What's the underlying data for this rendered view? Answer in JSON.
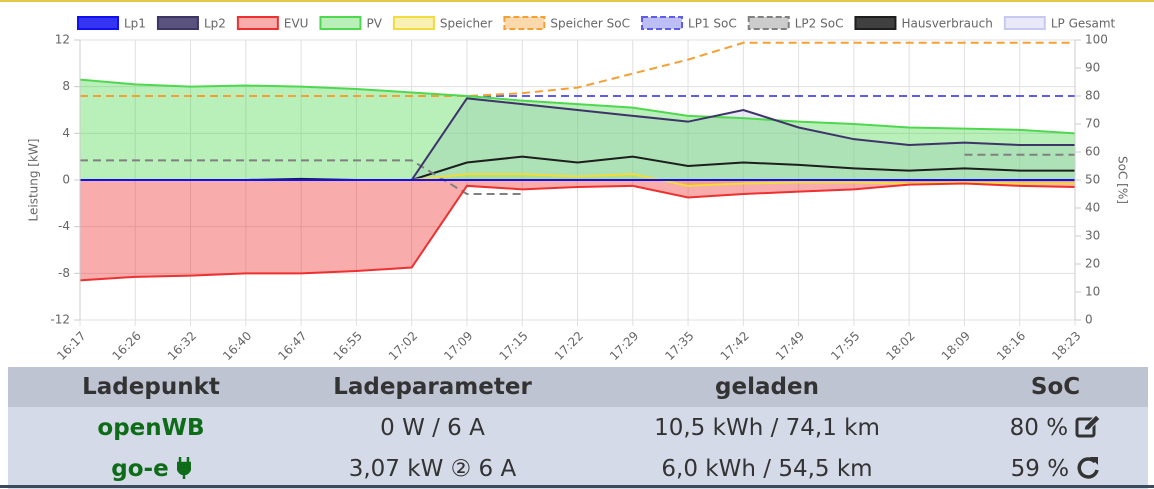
{
  "chart_data": {
    "type": "line",
    "x": [
      "16:17",
      "16:26",
      "16:32",
      "16:40",
      "16:47",
      "16:55",
      "17:02",
      "17:09",
      "17:15",
      "17:22",
      "17:29",
      "17:35",
      "17:42",
      "17:49",
      "17:55",
      "18:02",
      "18:09",
      "18:16",
      "18:23"
    ],
    "ylabel": "Leistung [kW]",
    "y2label": "SoC [%]",
    "ylim": [
      -12,
      12
    ],
    "yticks": [
      -12,
      -8,
      -4,
      0,
      4,
      8,
      12
    ],
    "y2lim": [
      0,
      100
    ],
    "y2ticks": [
      0,
      10,
      20,
      30,
      40,
      50,
      60,
      70,
      80,
      90,
      100
    ],
    "grid": true,
    "legend": "top",
    "series": [
      {
        "name": "Lp1",
        "color": "#1010f0",
        "fill": false,
        "dashed": false,
        "values": [
          0,
          0,
          0,
          0,
          0,
          0,
          0,
          0,
          0,
          0,
          0,
          0,
          0,
          0,
          0,
          0,
          0,
          0,
          0
        ]
      },
      {
        "name": "Lp2",
        "color": "#3d3566",
        "fill": false,
        "dashed": false,
        "values": [
          0,
          0,
          0,
          0,
          0,
          0,
          0,
          7.0,
          6.5,
          6.0,
          5.5,
          5.0,
          6.0,
          4.5,
          3.5,
          3.0,
          3.2,
          3.0,
          3.0
        ]
      },
      {
        "name": "EVU",
        "color": "#ee3030",
        "fill": true,
        "dashed": false,
        "values": [
          -8.6,
          -8.3,
          -8.2,
          -8.0,
          -8.0,
          -7.8,
          -7.5,
          -0.5,
          -0.8,
          -0.6,
          -0.5,
          -1.5,
          -1.2,
          -1.0,
          -0.8,
          -0.4,
          -0.3,
          -0.5,
          -0.6
        ]
      },
      {
        "name": "PV",
        "color": "#4fd84f",
        "fill": true,
        "dashed": false,
        "values": [
          8.6,
          8.2,
          8.0,
          8.1,
          8.0,
          7.8,
          7.5,
          7.2,
          6.8,
          6.5,
          6.2,
          5.5,
          5.3,
          5.0,
          4.8,
          4.5,
          4.4,
          4.3,
          4.0
        ]
      },
      {
        "name": "Speicher",
        "color": "#f0dc40",
        "fill": true,
        "dashed": false,
        "values": [
          0,
          0,
          0,
          0,
          0,
          0,
          0,
          0.5,
          0.5,
          0.3,
          0.5,
          -0.5,
          -0.3,
          -0.2,
          -0.2,
          -0.3,
          -0.2,
          -0.3,
          -0.3
        ]
      },
      {
        "name": "Speicher SoC",
        "color": "#f5a033",
        "fill": false,
        "dashed": true,
        "axis": "y2",
        "values": [
          80,
          80,
          80,
          80,
          80,
          80,
          80,
          80,
          81,
          83,
          88,
          93,
          99,
          99,
          99,
          99,
          99,
          99,
          99
        ]
      },
      {
        "name": "LP1 SoC",
        "color": "#5d5de8",
        "fill": false,
        "dashed": true,
        "axis": "y2",
        "values": [
          80,
          80,
          80,
          80,
          80,
          80,
          80,
          80,
          80,
          80,
          80,
          80,
          80,
          80,
          80,
          80,
          80,
          80,
          80
        ]
      },
      {
        "name": "LP2 SoC",
        "color": "#808080",
        "fill": false,
        "dashed": true,
        "axis": "y2",
        "values": [
          57,
          57,
          57,
          57,
          57,
          57,
          57,
          45,
          45,
          null,
          null,
          null,
          null,
          null,
          null,
          null,
          59,
          59,
          59
        ]
      },
      {
        "name": "Hausverbrauch",
        "color": "#1e1e1e",
        "fill": false,
        "dashed": false,
        "values": [
          0,
          0,
          0,
          0,
          0.1,
          0,
          0,
          1.5,
          2.0,
          1.5,
          2.0,
          1.2,
          1.5,
          1.3,
          1.0,
          0.8,
          1.0,
          0.8,
          0.8
        ]
      },
      {
        "name": "LP Gesamt",
        "color": "#c8c8f0",
        "fill": true,
        "dashed": false,
        "values": [
          0,
          0,
          0,
          0,
          0,
          0,
          0,
          7.0,
          6.5,
          6.0,
          5.5,
          5.0,
          6.0,
          4.5,
          3.5,
          3.0,
          3.2,
          3.0,
          3.0
        ]
      }
    ]
  },
  "table": {
    "header": [
      "Ladepunkt",
      "Ladeparameter",
      "geladen",
      "SoC"
    ],
    "rows": [
      [
        "openWB",
        "0 W / 6 A",
        "10,5 kWh / 74,1 km",
        "80 %"
      ],
      [
        "go-e",
        "3,07 kW ② 6 A",
        "6,0 kWh / 54,5 km",
        "59 %"
      ]
    ]
  }
}
